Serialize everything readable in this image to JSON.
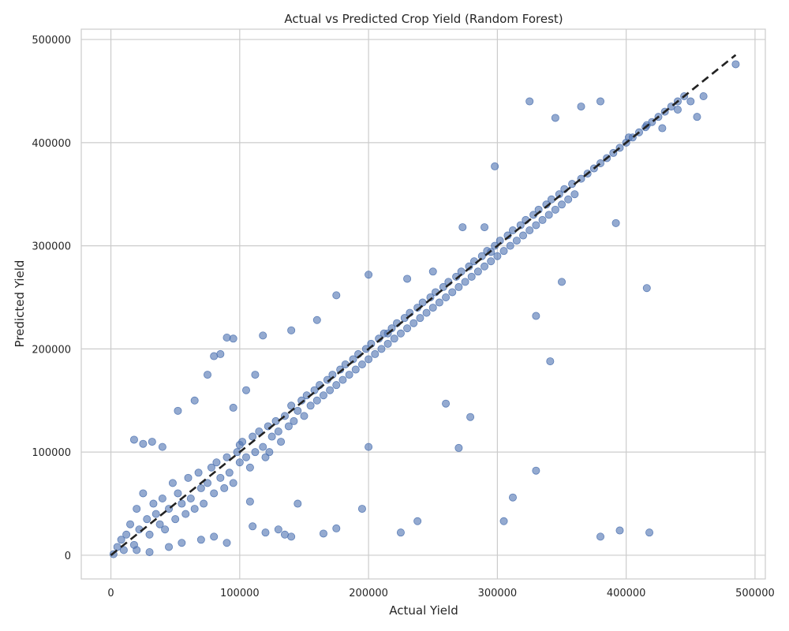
{
  "chart_data": {
    "type": "scatter",
    "title": "Actual vs Predicted Crop Yield (Random Forest)",
    "xlabel": "Actual Yield",
    "ylabel": "Predicted Yield",
    "xlim": [
      -23000,
      508000
    ],
    "ylim": [
      -23000,
      510000
    ],
    "xticks": [
      0,
      100000,
      200000,
      300000,
      400000,
      500000
    ],
    "yticks": [
      0,
      100000,
      200000,
      300000,
      400000,
      500000
    ],
    "xtick_labels": [
      "0",
      "100000",
      "200000",
      "300000",
      "400000",
      "500000"
    ],
    "ytick_labels": [
      "0",
      "100000",
      "200000",
      "300000",
      "400000",
      "500000"
    ],
    "grid": true,
    "colors": {
      "points": "#4C72B0",
      "reference_line": "#222222",
      "grid": "#cccccc"
    },
    "reference_line": {
      "style": "dashed",
      "from": [
        0,
        0
      ],
      "to": [
        485000,
        485000
      ]
    },
    "series": [
      {
        "x": [
          2000,
          5000,
          8000,
          10000,
          12000,
          15000,
          18000,
          20000,
          22000,
          25000,
          28000,
          30000,
          33000,
          35000,
          38000,
          40000,
          42000,
          45000,
          48000,
          50000,
          52000,
          55000,
          58000,
          60000,
          62000,
          65000,
          68000,
          70000,
          72000,
          75000,
          78000,
          80000,
          82000,
          85000,
          88000,
          90000,
          92000,
          95000,
          98000,
          100000,
          102000,
          105000,
          108000,
          110000,
          112000,
          115000,
          118000,
          120000,
          122000,
          125000,
          128000,
          130000,
          132000,
          135000,
          138000,
          140000,
          142000,
          145000,
          148000,
          150000,
          152000,
          155000,
          158000,
          160000,
          162000,
          165000,
          168000,
          170000,
          172000,
          175000,
          178000,
          180000,
          182000,
          185000,
          188000,
          190000,
          192000,
          195000,
          198000,
          200000,
          202000,
          205000,
          208000,
          210000,
          212000,
          215000,
          218000,
          220000,
          222000,
          225000,
          228000,
          230000,
          232000,
          235000,
          238000,
          240000,
          242000,
          245000,
          248000,
          250000,
          252000,
          255000,
          258000,
          260000,
          262000,
          265000,
          268000,
          270000,
          272000,
          275000,
          278000,
          280000,
          282000,
          285000,
          288000,
          290000,
          292000,
          295000,
          298000,
          300000,
          302000,
          305000,
          308000,
          310000,
          312000,
          315000,
          318000,
          320000,
          322000,
          325000,
          328000,
          330000,
          332000,
          335000,
          338000,
          340000,
          342000,
          345000,
          348000,
          350000,
          352000,
          355000,
          358000,
          360000,
          365000,
          370000,
          375000,
          380000,
          385000,
          390000,
          395000,
          400000,
          405000,
          410000,
          415000,
          420000,
          425000,
          430000,
          435000,
          440000,
          445000,
          450000,
          455000,
          460000,
          485000,
          18000,
          25000,
          32000,
          40000,
          52000,
          65000,
          75000,
          85000,
          95000,
          105000,
          20000,
          30000,
          45000,
          55000,
          70000,
          80000,
          90000,
          110000,
          120000,
          130000,
          80000,
          95000,
          112000,
          140000,
          160000,
          175000,
          200000,
          215000,
          230000,
          250000,
          273000,
          290000,
          325000,
          345000,
          365000,
          380000,
          402000,
          416000,
          428000,
          440000,
          298000,
          330000,
          341000,
          350000,
          392000,
          416000,
          279000,
          295000,
          270000,
          260000,
          330000,
          312000,
          305000,
          380000,
          395000,
          418000,
          238000,
          225000,
          200000,
          195000,
          165000,
          175000,
          145000,
          140000,
          123000,
          100000,
          108000,
          90000,
          118000,
          135000
        ],
        "y": [
          1000,
          8000,
          15000,
          5000,
          20000,
          30000,
          10000,
          45000,
          25000,
          60000,
          35000,
          20000,
          50000,
          40000,
          30000,
          55000,
          25000,
          45000,
          70000,
          35000,
          60000,
          50000,
          40000,
          75000,
          55000,
          45000,
          80000,
          65000,
          50000,
          70000,
          85000,
          60000,
          90000,
          75000,
          65000,
          95000,
          80000,
          70000,
          100000,
          90000,
          110000,
          95000,
          85000,
          115000,
          100000,
          120000,
          105000,
          95000,
          125000,
          115000,
          130000,
          120000,
          110000,
          135000,
          125000,
          145000,
          130000,
          140000,
          150000,
          135000,
          155000,
          145000,
          160000,
          150000,
          165000,
          155000,
          170000,
          160000,
          175000,
          165000,
          180000,
          170000,
          185000,
          175000,
          190000,
          180000,
          195000,
          185000,
          200000,
          190000,
          205000,
          195000,
          210000,
          200000,
          215000,
          205000,
          220000,
          210000,
          225000,
          215000,
          230000,
          220000,
          235000,
          225000,
          240000,
          230000,
          245000,
          235000,
          250000,
          240000,
          255000,
          245000,
          260000,
          250000,
          265000,
          255000,
          270000,
          260000,
          275000,
          265000,
          280000,
          270000,
          285000,
          275000,
          290000,
          280000,
          295000,
          285000,
          300000,
          290000,
          305000,
          295000,
          310000,
          300000,
          315000,
          305000,
          320000,
          310000,
          325000,
          315000,
          330000,
          320000,
          335000,
          325000,
          340000,
          330000,
          345000,
          335000,
          350000,
          340000,
          355000,
          345000,
          360000,
          350000,
          365000,
          370000,
          375000,
          380000,
          385000,
          390000,
          395000,
          400000,
          405000,
          410000,
          415000,
          420000,
          425000,
          430000,
          435000,
          440000,
          445000,
          440000,
          425000,
          445000,
          476000,
          112000,
          108000,
          110000,
          105000,
          140000,
          150000,
          175000,
          195000,
          210000,
          160000,
          5000,
          3000,
          8000,
          12000,
          15000,
          18000,
          12000,
          28000,
          22000,
          25000,
          193000,
          143000,
          175000,
          218000,
          228000,
          252000,
          272000,
          215000,
          268000,
          275000,
          318000,
          318000,
          440000,
          424000,
          435000,
          440000,
          405000,
          417000,
          414000,
          432000,
          377000,
          82000,
          188000,
          265000,
          322000,
          259000,
          134000,
          294000,
          104000,
          147000,
          232000,
          56000,
          33000,
          18000,
          24000,
          22000,
          33000,
          22000,
          105000,
          45000,
          21000,
          26000,
          50000,
          18000,
          100000,
          107000,
          52000,
          211000,
          213000,
          20000
        ]
      }
    ]
  }
}
